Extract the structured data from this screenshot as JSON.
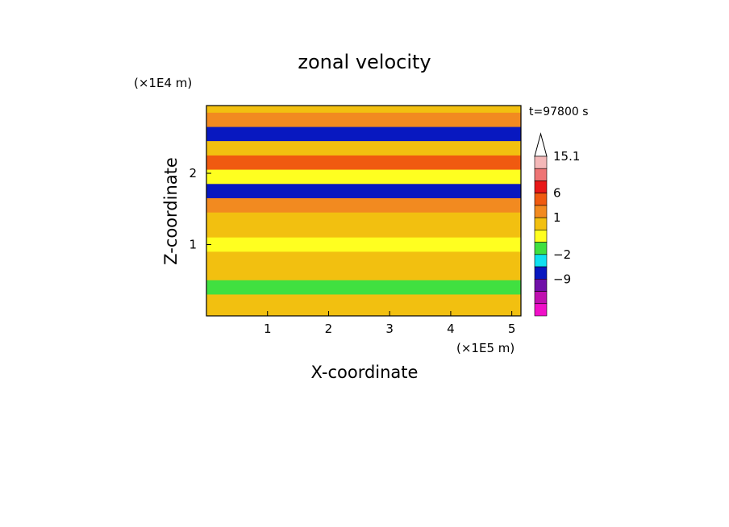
{
  "chart_data": {
    "type": "heatmap",
    "title": "zonal velocity",
    "xlabel": "X-coordinate",
    "ylabel": "Z-coordinate",
    "x_unit": "(×1E5 m)",
    "y_unit": "(×1E4 m)",
    "time_label": "t=97800 s",
    "xlim": [
      0,
      5.15
    ],
    "ylim": [
      0,
      2.95
    ],
    "x_ticks": [
      "1",
      "2",
      "3",
      "4",
      "5"
    ],
    "y_ticks": [
      "1",
      "2"
    ],
    "colorbar": {
      "labels": [
        "15.1",
        "6",
        "1",
        "−2",
        "−9"
      ],
      "levels_top_to_bottom": [
        15.1,
        12,
        9,
        6,
        3,
        1,
        0,
        -1,
        -2,
        -5,
        -9,
        -12,
        -15
      ],
      "colors_top_to_bottom": [
        "#f4b8b8",
        "#ee7474",
        "#e81818",
        "#f05a10",
        "#f28a20",
        "#f2c010",
        "#ffff20",
        "#40e040",
        "#10e0f0",
        "#0818c0",
        "#7010a8",
        "#c010b0",
        "#f010c8"
      ],
      "extend": "max"
    },
    "bands": [
      {
        "z": 2.75,
        "value": 3
      },
      {
        "z": 2.55,
        "value": -5
      },
      {
        "z": 2.35,
        "value": 1
      },
      {
        "z": 2.15,
        "value": 6
      },
      {
        "z": 1.95,
        "value": 0
      },
      {
        "z": 1.75,
        "value": -5
      },
      {
        "z": 1.55,
        "value": 3
      },
      {
        "z": 1.3,
        "value": 1
      },
      {
        "z": 1.0,
        "value": 0
      },
      {
        "z": 0.7,
        "value": 1
      },
      {
        "z": 0.4,
        "value": -1
      },
      {
        "z": 0.15,
        "value": 1
      }
    ]
  }
}
